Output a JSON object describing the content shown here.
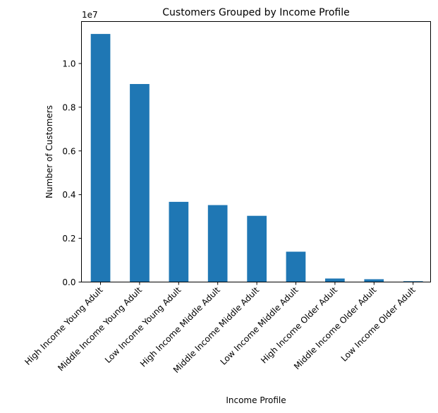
{
  "chart_data": {
    "type": "bar",
    "title": "Customers Grouped by Income Profile",
    "xlabel": "Income Profile",
    "ylabel": "Number of Customers",
    "y_offset_label": "1e7",
    "categories": [
      "High Income Young Adult",
      "Middle Income Young Adult",
      "Low Income Young Adult",
      "High Income Middle Adult",
      "Middle Income Middle Adult",
      "Low Income Middle Adult",
      "High Income Older Adult",
      "Middle Income Older Adult",
      "Low Income Older Adult"
    ],
    "values": [
      11350000,
      9060000,
      3670000,
      3520000,
      3030000,
      1390000,
      160000,
      130000,
      40000
    ],
    "y_ticks": [
      0,
      2000000,
      4000000,
      6000000,
      8000000,
      10000000
    ],
    "y_tick_labels": [
      "0.0",
      "0.2",
      "0.4",
      "0.6",
      "0.8",
      "1.0"
    ],
    "ylim": [
      0,
      11920000
    ],
    "grid": false,
    "legend": false,
    "bar_color": "#1f77b4"
  }
}
